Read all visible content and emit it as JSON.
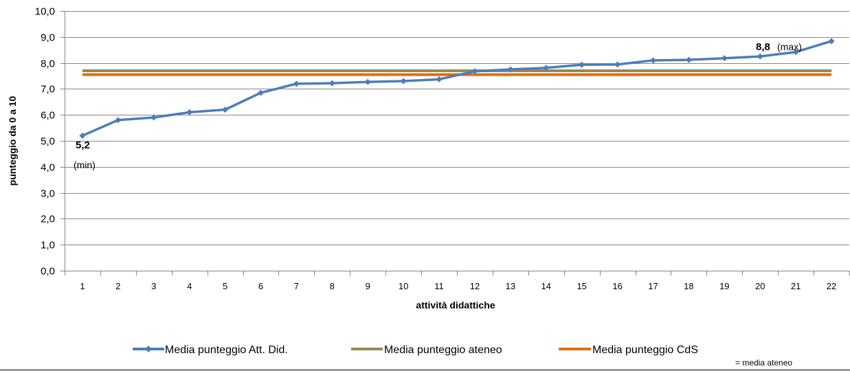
{
  "chart_data": {
    "type": "line",
    "x": [
      "1",
      "2",
      "3",
      "4",
      "5",
      "6",
      "7",
      "8",
      "9",
      "10",
      "11",
      "12",
      "13",
      "14",
      "15",
      "16",
      "17",
      "18",
      "19",
      "20",
      "21",
      "22"
    ],
    "xlabel": "attività didattiche",
    "ylabel": "punteggio da 0 a 10",
    "ylim": [
      0,
      10
    ],
    "yticks": [
      "0,0",
      "1,0",
      "2,0",
      "3,0",
      "4,0",
      "5,0",
      "6,0",
      "7,0",
      "8,0",
      "9,0",
      "10,0"
    ],
    "grid": true,
    "legend_position": "bottom",
    "series": [
      {
        "name": "Media punteggio Att. Did.",
        "color": "#4a7ebb",
        "marker": "diamond",
        "values": [
          5.2,
          5.8,
          5.9,
          6.1,
          6.2,
          6.85,
          7.2,
          7.22,
          7.27,
          7.3,
          7.37,
          7.68,
          7.75,
          7.81,
          7.93,
          7.94,
          8.1,
          8.12,
          8.18,
          8.25,
          8.42,
          8.84
        ]
      },
      {
        "name": "Media punteggio ateneo",
        "color": "#948a54",
        "values": [
          7.7,
          7.7,
          7.7,
          7.7,
          7.7,
          7.7,
          7.7,
          7.7,
          7.7,
          7.7,
          7.7,
          7.7,
          7.7,
          7.7,
          7.7,
          7.7,
          7.7,
          7.7,
          7.7,
          7.7,
          7.7,
          7.7
        ]
      },
      {
        "name": "Media punteggio CdS",
        "color": "#e46c0a",
        "values": [
          7.55,
          7.55,
          7.55,
          7.55,
          7.55,
          7.55,
          7.55,
          7.55,
          7.55,
          7.55,
          7.55,
          7.55,
          7.55,
          7.55,
          7.55,
          7.55,
          7.55,
          7.55,
          7.55,
          7.55,
          7.55,
          7.55
        ]
      }
    ],
    "annotations": {
      "min_value": "5,2",
      "min_label": "(min)",
      "max_value": "8,8",
      "max_label": "(max)"
    },
    "footnote": "= media ateneo"
  }
}
